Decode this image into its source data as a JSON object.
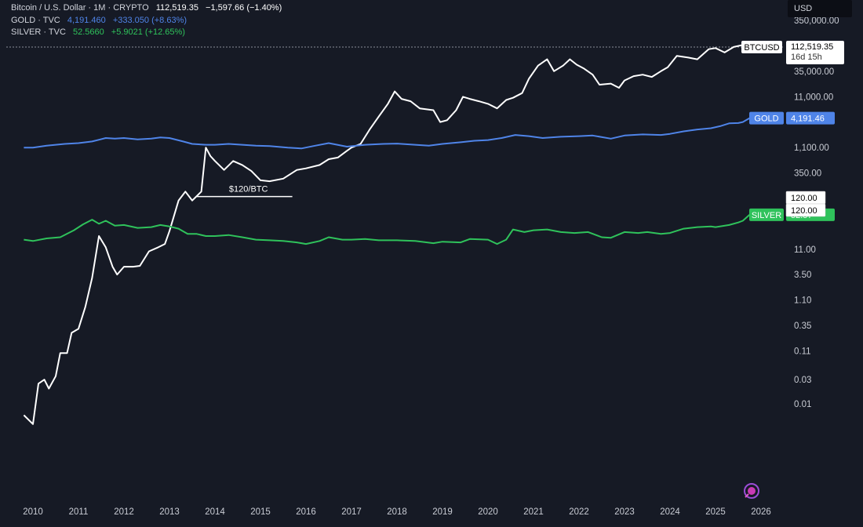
{
  "legend": {
    "rows": [
      {
        "name": "Bitcoin / U.S. Dollar · 1M · CRYPTO",
        "value": "112,519.35",
        "change": "−1,597.66 (−1.40%)",
        "color": "#ffffff"
      },
      {
        "name": "GOLD · TVC",
        "value": "4,191.460",
        "change": "+333.050 (+8.63%)",
        "color": "#4f84e8"
      },
      {
        "name": "SILVER · TVC",
        "value": "52.5660",
        "change": "+5.9021 (+12.65%)",
        "color": "#2fc25b"
      }
    ]
  },
  "currency": "USD",
  "chart_data": {
    "type": "line",
    "scale": "log",
    "x_ticks": [
      "2010",
      "2011",
      "2012",
      "2013",
      "2014",
      "2015",
      "2016",
      "2017",
      "2018",
      "2019",
      "2020",
      "2021",
      "2022",
      "2023",
      "2024",
      "2025",
      "2026"
    ],
    "y_ticks": [
      "350,000.00",
      "35,000.00",
      "11,000.00",
      "1,100.00",
      "350.00",
      "11.00",
      "3.50",
      "1.10",
      "0.35",
      "0.11",
      "0.03",
      "0.01"
    ],
    "y_tick_values": [
      350000,
      35000,
      11000,
      1100,
      350,
      11,
      3.5,
      1.1,
      0.35,
      0.11,
      0.03,
      0.01
    ],
    "series": [
      {
        "name": "BTCUSD",
        "color": "#ffffff",
        "tag_label": "BTCUSD",
        "tag_value": "112,519.35",
        "tag_countdown": "16d 15h",
        "points": [
          [
            2009.8,
            0.006
          ],
          [
            2010.0,
            0.004
          ],
          [
            2010.12,
            0.025
          ],
          [
            2010.25,
            0.03
          ],
          [
            2010.35,
            0.02
          ],
          [
            2010.5,
            0.035
          ],
          [
            2010.6,
            0.1
          ],
          [
            2010.75,
            0.1
          ],
          [
            2010.85,
            0.25
          ],
          [
            2011.0,
            0.3
          ],
          [
            2011.15,
            0.8
          ],
          [
            2011.3,
            3
          ],
          [
            2011.45,
            20
          ],
          [
            2011.6,
            12
          ],
          [
            2011.75,
            5
          ],
          [
            2011.85,
            3.5
          ],
          [
            2012.0,
            5
          ],
          [
            2012.2,
            5
          ],
          [
            2012.35,
            5.2
          ],
          [
            2012.55,
            10
          ],
          [
            2012.75,
            12
          ],
          [
            2012.9,
            14
          ],
          [
            2013.0,
            25
          ],
          [
            2013.2,
            100
          ],
          [
            2013.35,
            150
          ],
          [
            2013.5,
            100
          ],
          [
            2013.7,
            150
          ],
          [
            2013.8,
            1100
          ],
          [
            2013.9,
            750
          ],
          [
            2014.0,
            600
          ],
          [
            2014.2,
            400
          ],
          [
            2014.4,
            600
          ],
          [
            2014.6,
            500
          ],
          [
            2014.8,
            380
          ],
          [
            2015.0,
            250
          ],
          [
            2015.2,
            240
          ],
          [
            2015.5,
            270
          ],
          [
            2015.8,
            400
          ],
          [
            2016.0,
            430
          ],
          [
            2016.3,
            500
          ],
          [
            2016.5,
            650
          ],
          [
            2016.7,
            700
          ],
          [
            2016.9,
            950
          ],
          [
            2017.0,
            1100
          ],
          [
            2017.2,
            1300
          ],
          [
            2017.4,
            2500
          ],
          [
            2017.6,
            4500
          ],
          [
            2017.8,
            8000
          ],
          [
            2017.95,
            14000
          ],
          [
            2018.1,
            10000
          ],
          [
            2018.3,
            9000
          ],
          [
            2018.5,
            6500
          ],
          [
            2018.8,
            6000
          ],
          [
            2018.95,
            3500
          ],
          [
            2019.1,
            3800
          ],
          [
            2019.3,
            6000
          ],
          [
            2019.45,
            11000
          ],
          [
            2019.6,
            10000
          ],
          [
            2019.8,
            9000
          ],
          [
            2020.0,
            8000
          ],
          [
            2020.2,
            6500
          ],
          [
            2020.4,
            9500
          ],
          [
            2020.55,
            10500
          ],
          [
            2020.75,
            13000
          ],
          [
            2020.9,
            25000
          ],
          [
            2021.1,
            45000
          ],
          [
            2021.3,
            60000
          ],
          [
            2021.45,
            35000
          ],
          [
            2021.65,
            45000
          ],
          [
            2021.8,
            60000
          ],
          [
            2021.95,
            47000
          ],
          [
            2022.1,
            40000
          ],
          [
            2022.3,
            30000
          ],
          [
            2022.45,
            19000
          ],
          [
            2022.7,
            20000
          ],
          [
            2022.88,
            16500
          ],
          [
            2023.0,
            23000
          ],
          [
            2023.2,
            28000
          ],
          [
            2023.4,
            30000
          ],
          [
            2023.6,
            27000
          ],
          [
            2023.8,
            35000
          ],
          [
            2023.95,
            42000
          ],
          [
            2024.15,
            70000
          ],
          [
            2024.4,
            65000
          ],
          [
            2024.6,
            60000
          ],
          [
            2024.85,
            95000
          ],
          [
            2025.0,
            100000
          ],
          [
            2025.2,
            82000
          ],
          [
            2025.4,
            105000
          ],
          [
            2025.6,
            115000
          ],
          [
            2025.75,
            112519.35
          ]
        ]
      },
      {
        "name": "GOLD",
        "color": "#4f84e8",
        "tag_label": "GOLD",
        "tag_value": "4,191.46",
        "points": [
          [
            2009.8,
            1100
          ],
          [
            2010.0,
            1100
          ],
          [
            2010.3,
            1200
          ],
          [
            2010.7,
            1300
          ],
          [
            2011.0,
            1350
          ],
          [
            2011.3,
            1450
          ],
          [
            2011.6,
            1700
          ],
          [
            2011.8,
            1650
          ],
          [
            2012.0,
            1700
          ],
          [
            2012.3,
            1600
          ],
          [
            2012.6,
            1650
          ],
          [
            2012.8,
            1750
          ],
          [
            2013.0,
            1700
          ],
          [
            2013.3,
            1450
          ],
          [
            2013.5,
            1300
          ],
          [
            2013.8,
            1250
          ],
          [
            2014.0,
            1250
          ],
          [
            2014.3,
            1300
          ],
          [
            2014.6,
            1250
          ],
          [
            2014.9,
            1200
          ],
          [
            2015.2,
            1180
          ],
          [
            2015.6,
            1100
          ],
          [
            2015.9,
            1060
          ],
          [
            2016.2,
            1200
          ],
          [
            2016.5,
            1350
          ],
          [
            2016.9,
            1150
          ],
          [
            2017.3,
            1250
          ],
          [
            2017.7,
            1300
          ],
          [
            2018.0,
            1320
          ],
          [
            2018.4,
            1250
          ],
          [
            2018.7,
            1200
          ],
          [
            2019.0,
            1300
          ],
          [
            2019.4,
            1400
          ],
          [
            2019.7,
            1500
          ],
          [
            2020.0,
            1550
          ],
          [
            2020.3,
            1700
          ],
          [
            2020.6,
            1950
          ],
          [
            2020.9,
            1850
          ],
          [
            2021.2,
            1700
          ],
          [
            2021.6,
            1800
          ],
          [
            2022.0,
            1850
          ],
          [
            2022.3,
            1900
          ],
          [
            2022.7,
            1650
          ],
          [
            2023.0,
            1900
          ],
          [
            2023.4,
            2000
          ],
          [
            2023.8,
            1950
          ],
          [
            2024.0,
            2050
          ],
          [
            2024.3,
            2300
          ],
          [
            2024.6,
            2500
          ],
          [
            2024.9,
            2650
          ],
          [
            2025.1,
            2900
          ],
          [
            2025.3,
            3300
          ],
          [
            2025.5,
            3350
          ],
          [
            2025.6,
            3500
          ],
          [
            2025.75,
            4191.46
          ]
        ]
      },
      {
        "name": "SILVER",
        "color": "#2fc25b",
        "tag_label": "SILVER",
        "tag_value": "52.57",
        "points": [
          [
            2009.8,
            17
          ],
          [
            2010.0,
            16
          ],
          [
            2010.3,
            18
          ],
          [
            2010.6,
            19
          ],
          [
            2010.9,
            26
          ],
          [
            2011.1,
            34
          ],
          [
            2011.3,
            42
          ],
          [
            2011.45,
            35
          ],
          [
            2011.6,
            40
          ],
          [
            2011.8,
            32
          ],
          [
            2012.0,
            33
          ],
          [
            2012.3,
            29
          ],
          [
            2012.6,
            30
          ],
          [
            2012.8,
            33
          ],
          [
            2013.0,
            31
          ],
          [
            2013.2,
            28
          ],
          [
            2013.4,
            22
          ],
          [
            2013.6,
            22
          ],
          [
            2013.8,
            20
          ],
          [
            2014.0,
            20
          ],
          [
            2014.3,
            21
          ],
          [
            2014.6,
            19
          ],
          [
            2014.9,
            17
          ],
          [
            2015.2,
            16.5
          ],
          [
            2015.5,
            16
          ],
          [
            2015.8,
            15
          ],
          [
            2016.0,
            14
          ],
          [
            2016.3,
            16
          ],
          [
            2016.5,
            19
          ],
          [
            2016.8,
            17
          ],
          [
            2017.0,
            17
          ],
          [
            2017.3,
            17.5
          ],
          [
            2017.6,
            16.5
          ],
          [
            2018.0,
            16.5
          ],
          [
            2018.4,
            16
          ],
          [
            2018.8,
            14.5
          ],
          [
            2019.0,
            15.5
          ],
          [
            2019.4,
            15
          ],
          [
            2019.6,
            17.5
          ],
          [
            2020.0,
            17
          ],
          [
            2020.2,
            14
          ],
          [
            2020.4,
            17
          ],
          [
            2020.55,
            27
          ],
          [
            2020.8,
            24
          ],
          [
            2021.0,
            26
          ],
          [
            2021.3,
            27
          ],
          [
            2021.6,
            24
          ],
          [
            2021.9,
            23
          ],
          [
            2022.2,
            24
          ],
          [
            2022.5,
            19
          ],
          [
            2022.7,
            18.5
          ],
          [
            2023.0,
            24
          ],
          [
            2023.3,
            23
          ],
          [
            2023.5,
            24
          ],
          [
            2023.8,
            22
          ],
          [
            2024.0,
            23
          ],
          [
            2024.3,
            28
          ],
          [
            2024.6,
            30
          ],
          [
            2024.9,
            31
          ],
          [
            2025.0,
            30
          ],
          [
            2025.3,
            33
          ],
          [
            2025.5,
            37
          ],
          [
            2025.6,
            40
          ],
          [
            2025.75,
            52.57
          ]
        ]
      }
    ],
    "annotations": [
      {
        "text": "$120/BTC",
        "x_start": 2013.6,
        "x_end": 2015.7,
        "y": 120
      }
    ],
    "price_tags": [
      {
        "text": "120.00"
      },
      {
        "text": "120.00"
      }
    ]
  }
}
